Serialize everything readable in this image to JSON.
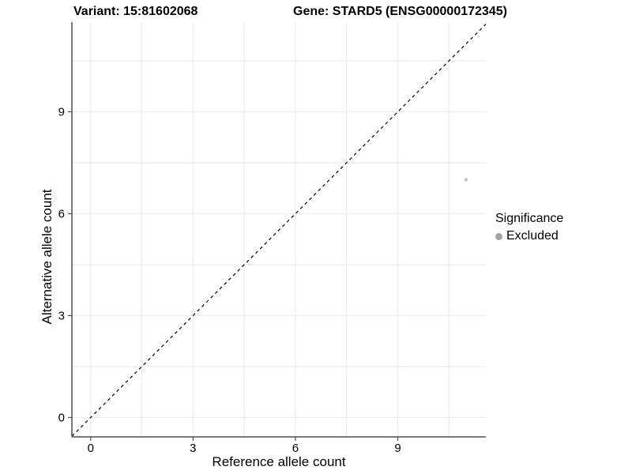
{
  "titles": {
    "variant": "Variant: 15:81602068",
    "gene": "Gene: STARD5 (ENSG00000172345)"
  },
  "chart_data": {
    "type": "scatter",
    "xlabel": "Reference allele count",
    "ylabel": "Alternative allele count",
    "xlim": [
      -0.55,
      11.58
    ],
    "ylim": [
      -0.57,
      11.64
    ],
    "xticks": [
      0,
      3,
      6,
      9
    ],
    "yticks": [
      0,
      3,
      6,
      9
    ],
    "x_minor_breaks": [
      1.5,
      4.5,
      7.5,
      10.5
    ],
    "y_minor_breaks": [
      1.5,
      4.5,
      7.5,
      10.5
    ],
    "grid": true,
    "identity_line": {
      "style": "dashed",
      "equation": "y = x"
    },
    "series": [
      {
        "name": "Excluded",
        "points": [
          {
            "x": 11,
            "y": 7
          }
        ]
      }
    ],
    "legend": {
      "position": "right",
      "title": "Significance",
      "entries": [
        {
          "label": "Excluded",
          "color": "#a3a3a3"
        }
      ]
    }
  },
  "colors": {
    "background": "#ffffff",
    "grid": "#ececec",
    "axis": "#4d4d4d",
    "tick_text": "#000000",
    "point": "#c3c3c3",
    "legend_dot": "#a3a3a3",
    "identity_line": "#000000"
  }
}
